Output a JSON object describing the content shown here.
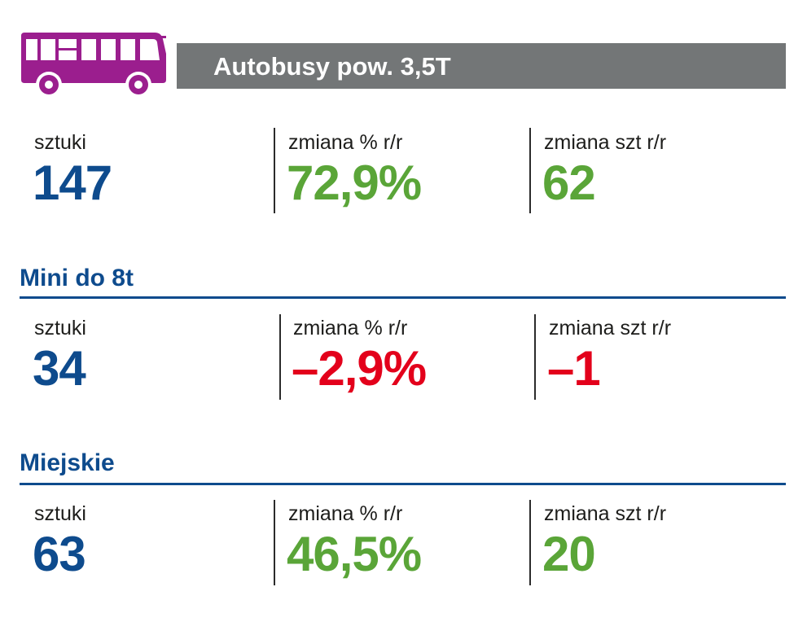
{
  "header": {
    "icon": "bus-icon",
    "title": "Autobusy pow. 3,5T",
    "bar_color": "#737677",
    "icon_color": "#9b1e8e"
  },
  "colors": {
    "blue": "#0e4b8d",
    "green": "#5aa538",
    "red": "#e3001b"
  },
  "total": {
    "units_label": "sztuki",
    "units_value": "147",
    "pct_label": "zmiana % r/r",
    "pct_value": "72,9%",
    "abs_label": "zmiana szt r/r",
    "abs_value": "62"
  },
  "mini": {
    "title": "Mini do 8t",
    "units_label": "sztuki",
    "units_value": "34",
    "pct_label": "zmiana % r/r",
    "pct_value": "–2,9%",
    "abs_label": "zmiana szt r/r",
    "abs_value": "–1"
  },
  "city": {
    "title": "Miejskie",
    "units_label": "sztuki",
    "units_value": "63",
    "pct_label": "zmiana % r/r",
    "pct_value": "46,5%",
    "abs_label": "zmiana szt r/r",
    "abs_value": "20"
  }
}
